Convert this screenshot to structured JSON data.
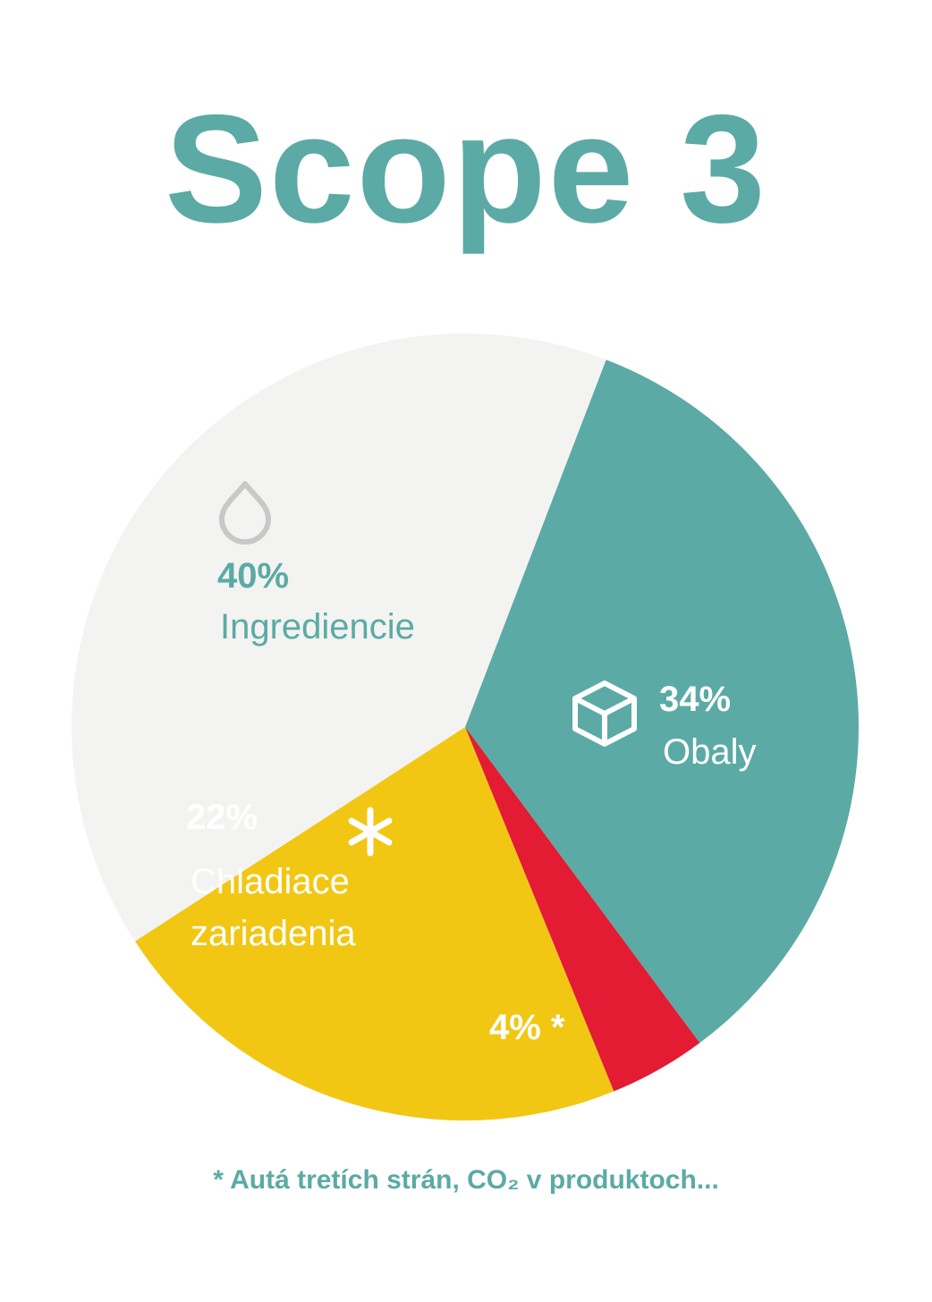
{
  "chart_data": {
    "type": "pie",
    "title": "Scope 3",
    "categories": [
      "Obaly",
      null,
      "Chladiace zariadenia",
      "Ingrediencie"
    ],
    "values": [
      34,
      4,
      22,
      40
    ],
    "value_labels": [
      "34%",
      "4% *",
      "22%",
      "40%"
    ],
    "colors": [
      "#5baaa5",
      "#e31b33",
      "#f1c714",
      "#f3f3f1"
    ],
    "footnote": "* Autá tretích strán, CO₂ v produktoch..."
  }
}
